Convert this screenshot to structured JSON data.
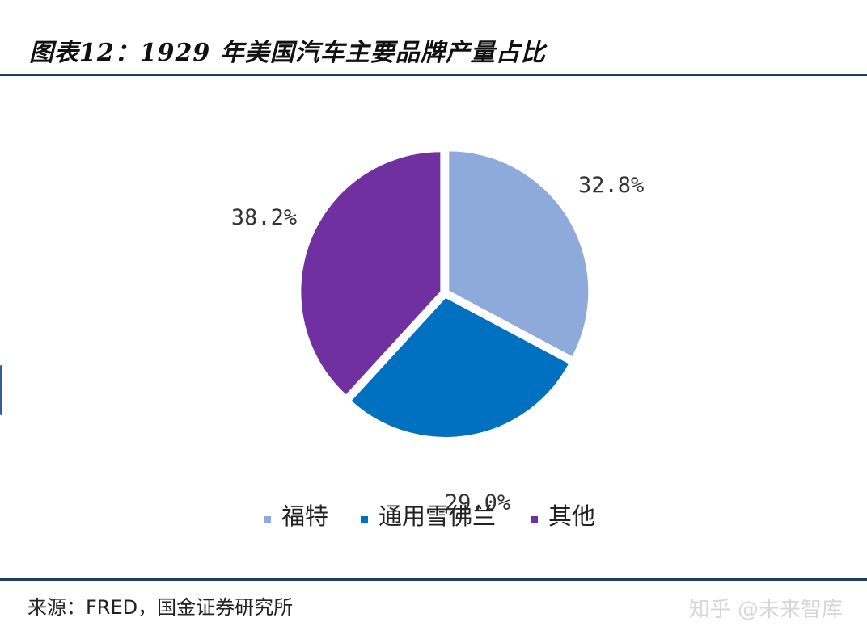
{
  "header": {
    "title": "图表12：1929 年美国汽车主要品牌产量占比"
  },
  "chart_data": {
    "type": "pie",
    "title": "",
    "categories": [
      "福特",
      "通用雪佛兰",
      "其他"
    ],
    "values": [
      32.8,
      29.0,
      38.2
    ],
    "labels": [
      "32.8%",
      "29.0%",
      "38.2%"
    ],
    "colors": [
      "#8eaadb",
      "#0070c0",
      "#7030a0"
    ],
    "start_angle_deg": 0,
    "direction": "clockwise",
    "legend_position": "bottom",
    "legend_marker": "■"
  },
  "footer": {
    "source": "来源：FRED，国金证券研究所",
    "watermark": "知乎 @未来智库"
  }
}
